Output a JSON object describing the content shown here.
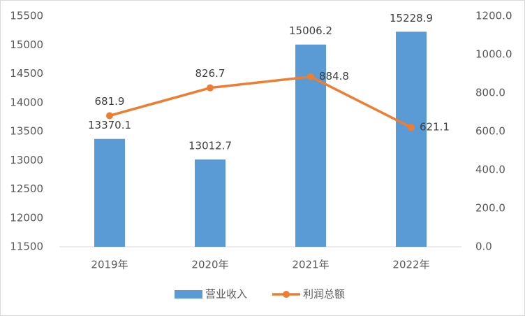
{
  "chart_data": {
    "type": "bar",
    "categories": [
      "2019年",
      "2020年",
      "2021年",
      "2022年"
    ],
    "series": [
      {
        "name": "营业收入",
        "type": "bar",
        "color": "#5b9bd5",
        "values": [
          13370.1,
          13012.7,
          15006.2,
          15228.9
        ]
      },
      {
        "name": "利润总额",
        "type": "line",
        "axis": "y2",
        "color": "#ed7d31",
        "values": [
          681.9,
          826.7,
          884.8,
          621.1
        ]
      }
    ],
    "ylim": [
      11500,
      15500
    ],
    "yticks": [
      11500,
      12000,
      12500,
      13000,
      13500,
      14000,
      14500,
      15000,
      15500
    ],
    "y2lim": [
      0,
      1200
    ],
    "y2ticks": [
      {
        "value": 0,
        "label": "0.0"
      },
      {
        "value": 200,
        "label": "200.0"
      },
      {
        "value": 400,
        "label": "400.0"
      },
      {
        "value": 600,
        "label": "600.0"
      },
      {
        "value": 800,
        "label": "800.0"
      },
      {
        "value": 1000,
        "label": "1000.0"
      },
      {
        "value": 1200,
        "label": "1200.0"
      }
    ],
    "grid": false,
    "legend": "bottom"
  }
}
